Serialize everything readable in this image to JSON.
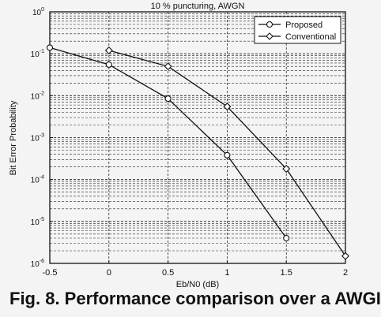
{
  "caption": "Fig. 8. Performance comparison over a AWGI",
  "chart_data": {
    "type": "line",
    "title": "10 % puncturing, AWGN",
    "xlabel": "Eb/N0 (dB)",
    "ylabel": "Bit Error Probability",
    "xscale": "linear",
    "yscale": "log",
    "xlim": [
      -0.5,
      2
    ],
    "ylim": [
      1e-06,
      1
    ],
    "x_ticks": [
      "-0.5",
      "0",
      "0.5",
      "1",
      "1.5",
      "2"
    ],
    "y_ticks": [
      {
        "base": "10",
        "exp": "0"
      },
      {
        "base": "10",
        "exp": "-1"
      },
      {
        "base": "10",
        "exp": "-2"
      },
      {
        "base": "10",
        "exp": "-3"
      },
      {
        "base": "10",
        "exp": "-4"
      },
      {
        "base": "10",
        "exp": "-5"
      },
      {
        "base": "10",
        "exp": "-6"
      }
    ],
    "grid": true,
    "legend_position": "top-right",
    "series": [
      {
        "name": "Proposed",
        "marker": "circle",
        "x": [
          -0.5,
          0,
          0.5,
          1,
          1.5
        ],
        "y": [
          0.14,
          0.055,
          0.0085,
          0.00038,
          4e-06
        ]
      },
      {
        "name": "Conventional",
        "marker": "diamond",
        "x": [
          0,
          0.5,
          1,
          1.5,
          2
        ],
        "y": [
          0.12,
          0.05,
          0.0055,
          0.00018,
          1.5e-06
        ]
      }
    ]
  }
}
